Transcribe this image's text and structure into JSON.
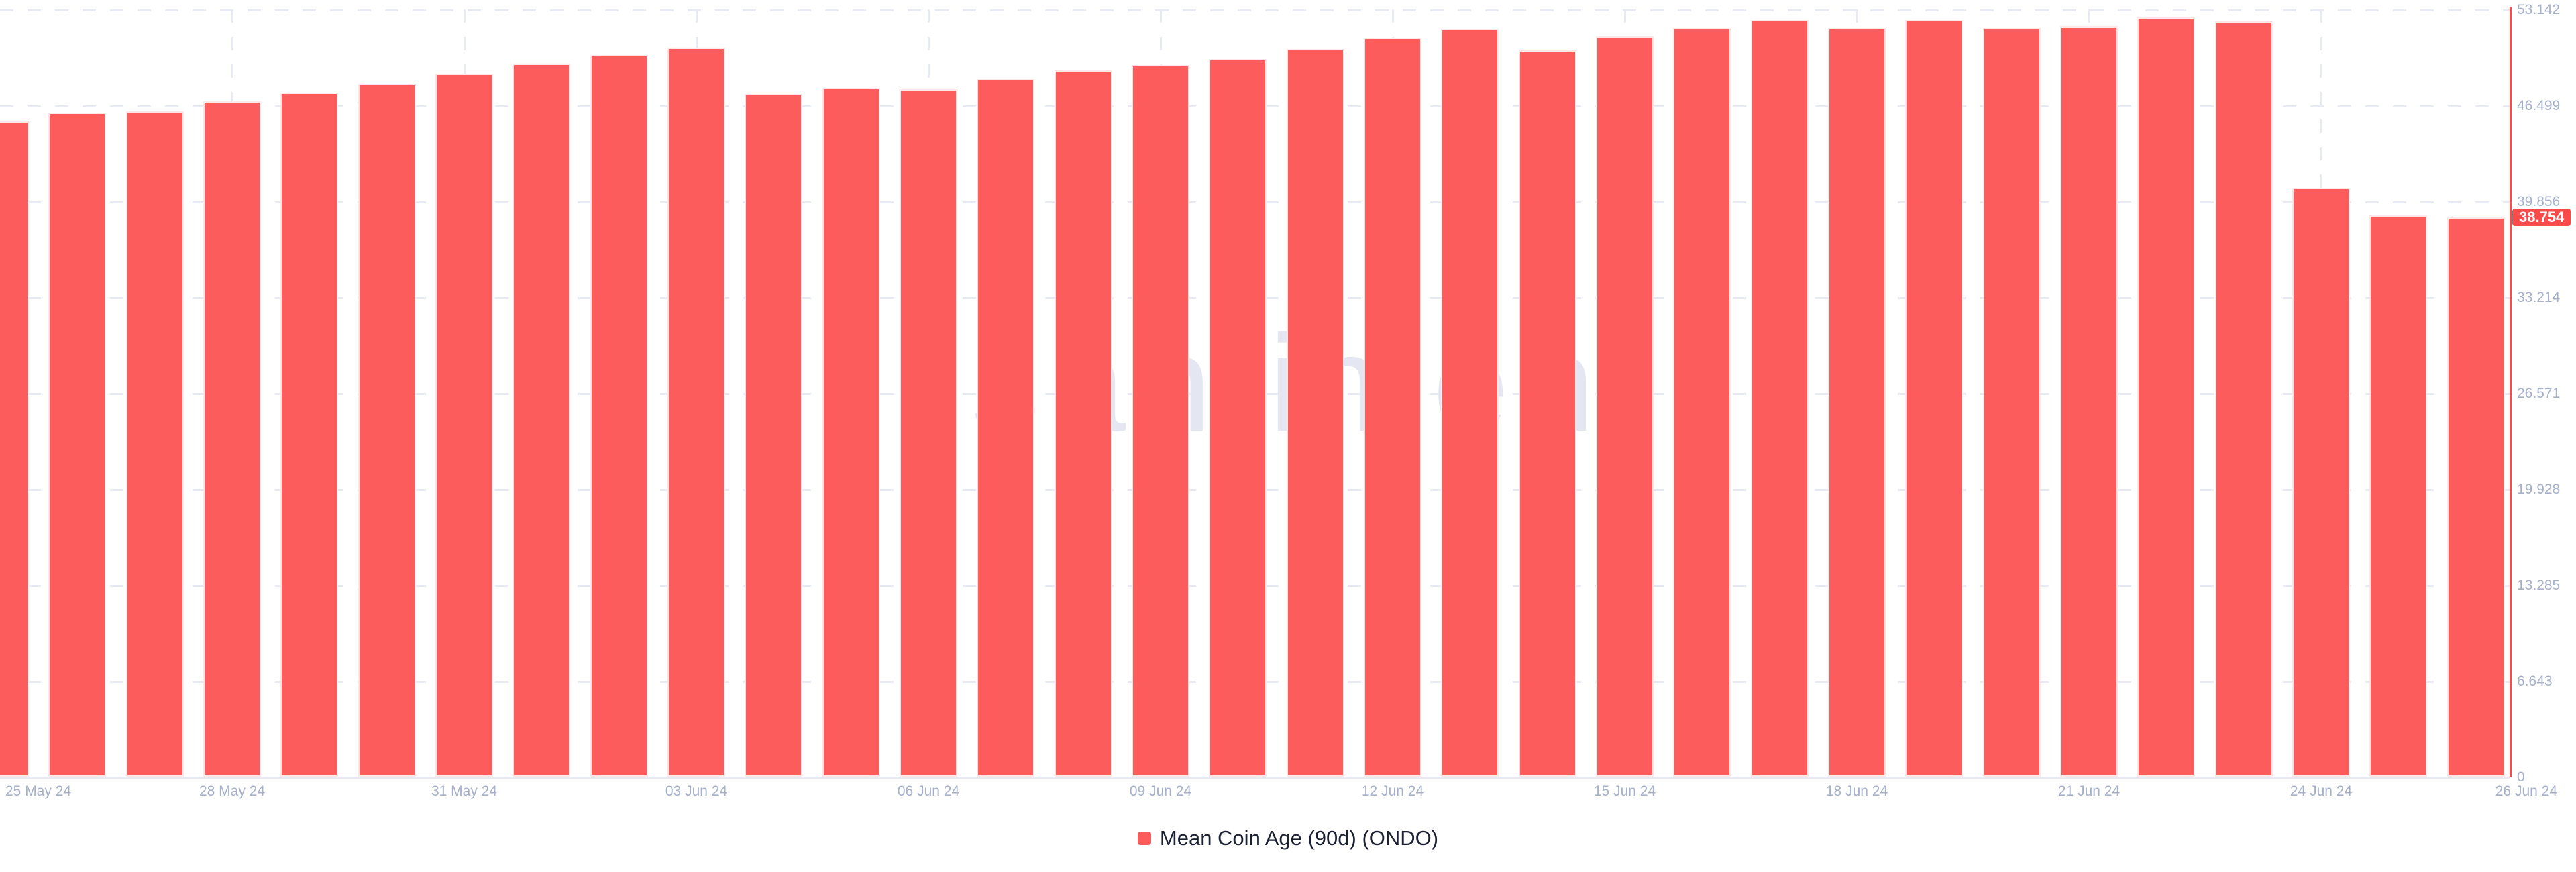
{
  "watermark": "santiment",
  "legend": {
    "label": "Mean Coin Age (90d) (ONDO)"
  },
  "current_value_badge": {
    "value": "38.754"
  },
  "colors": {
    "background": "#ffffff",
    "bar": "#fc5c5c",
    "grid": "#e7eaf3",
    "axis_label": "#a6b0cb",
    "red_axis_line": "#fa4b4b",
    "badge_bg": "#fa4b4b",
    "badge_text": "#ffffff",
    "legend_text": "#1b2033",
    "watermark": "#e4e7f1"
  },
  "chart_data": {
    "type": "bar",
    "title": "",
    "series_name": "Mean Coin Age (90d) (ONDO)",
    "categories": [
      "25 May 24",
      "26 May 24",
      "27 May 24",
      "28 May 24",
      "29 May 24",
      "30 May 24",
      "31 May 24",
      "01 Jun 24",
      "02 Jun 24",
      "03 Jun 24",
      "04 Jun 24",
      "05 Jun 24",
      "06 Jun 24",
      "07 Jun 24",
      "08 Jun 24",
      "09 Jun 24",
      "10 Jun 24",
      "11 Jun 24",
      "12 Jun 24",
      "13 Jun 24",
      "14 Jun 24",
      "15 Jun 24",
      "16 Jun 24",
      "17 Jun 24",
      "18 Jun 24",
      "19 Jun 24",
      "20 Jun 24",
      "21 Jun 24",
      "22 Jun 24",
      "23 Jun 24",
      "24 Jun 24",
      "25 Jun 24",
      "26 Jun 24"
    ],
    "values": [
      45.4,
      46.0,
      46.1,
      46.8,
      47.4,
      48.0,
      48.7,
      49.4,
      50.0,
      50.5,
      47.3,
      47.7,
      47.6,
      48.3,
      48.9,
      49.3,
      49.7,
      50.4,
      51.2,
      51.8,
      50.3,
      51.3,
      51.9,
      52.4,
      51.9,
      52.4,
      51.9,
      52.0,
      52.6,
      52.3,
      40.8,
      38.9,
      38.754
    ],
    "x_tick_label_indices": [
      0,
      3,
      6,
      9,
      12,
      15,
      18,
      21,
      24,
      27,
      30,
      32
    ],
    "x_tick_labels": [
      "25 May 24",
      "28 May 24",
      "31 May 24",
      "03 Jun 24",
      "06 Jun 24",
      "09 Jun 24",
      "12 Jun 24",
      "15 Jun 24",
      "18 Jun 24",
      "21 Jun 24",
      "24 Jun 24",
      "26 Jun 24"
    ],
    "y_ticks": [
      "0",
      "6.643",
      "13.285",
      "19.928",
      "26.571",
      "33.214",
      "39.856",
      "46.499",
      "53.142"
    ],
    "ylim": [
      0,
      53.142
    ],
    "current_value": 38.754,
    "grid": true,
    "legend_position": "bottom"
  }
}
